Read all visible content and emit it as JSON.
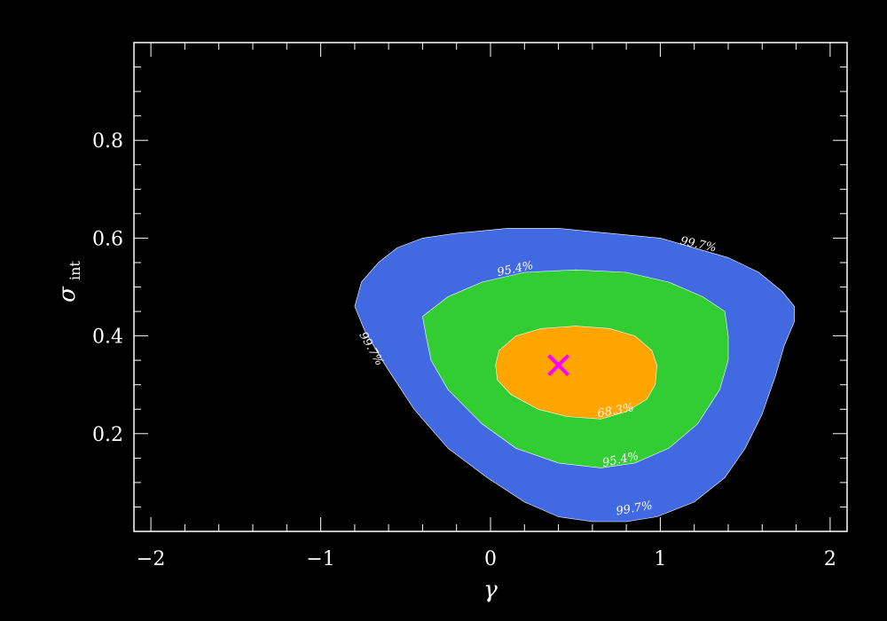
{
  "chart_data": {
    "type": "contour",
    "xlabel": "γ",
    "ylabel_main": "σ",
    "ylabel_sub": "int",
    "xlim": [
      -2.1,
      2.1
    ],
    "ylim": [
      0.0,
      1.0
    ],
    "x_ticks": [
      -2,
      -1,
      0,
      1,
      2
    ],
    "x_tick_labels": [
      "−2",
      "−1",
      "0",
      "1",
      "2"
    ],
    "y_ticks": [
      0.2,
      0.4,
      0.6,
      0.8
    ],
    "y_tick_labels": [
      "0.2",
      "0.4",
      "0.6",
      "0.8"
    ],
    "colors": {
      "background": "#000000",
      "axes": "#ffffff",
      "level_997": "#4169e1",
      "level_954": "#32cd32",
      "level_683": "#ffa500",
      "best_fit_marker": "#ff00ff"
    },
    "contours": [
      {
        "level": "99.7%",
        "polygon": [
          [
            -0.76,
            0.51
          ],
          [
            -0.66,
            0.55
          ],
          [
            -0.55,
            0.58
          ],
          [
            -0.4,
            0.6
          ],
          [
            -0.2,
            0.61
          ],
          [
            0.1,
            0.62
          ],
          [
            0.4,
            0.62
          ],
          [
            0.7,
            0.61
          ],
          [
            1.0,
            0.6
          ],
          [
            1.2,
            0.58
          ],
          [
            1.4,
            0.56
          ],
          [
            1.58,
            0.53
          ],
          [
            1.72,
            0.49
          ],
          [
            1.79,
            0.46
          ],
          [
            1.79,
            0.43
          ],
          [
            1.73,
            0.38
          ],
          [
            1.68,
            0.32
          ],
          [
            1.6,
            0.24
          ],
          [
            1.5,
            0.17
          ],
          [
            1.38,
            0.11
          ],
          [
            1.2,
            0.06
          ],
          [
            0.98,
            0.03
          ],
          [
            0.8,
            0.02
          ],
          [
            0.6,
            0.02
          ],
          [
            0.4,
            0.03
          ],
          [
            0.2,
            0.06
          ],
          [
            -0.02,
            0.11
          ],
          [
            -0.25,
            0.17
          ],
          [
            -0.45,
            0.25
          ],
          [
            -0.62,
            0.34
          ],
          [
            -0.74,
            0.41
          ],
          [
            -0.8,
            0.46
          ]
        ],
        "labels": [
          {
            "text": "99.7%",
            "x": 1.22,
            "y": 0.58,
            "angle": 12
          },
          {
            "text": "99.7%",
            "x": -0.72,
            "y": 0.37,
            "angle": 60
          },
          {
            "text": "99.7%",
            "x": 0.85,
            "y": 0.04,
            "angle": -10
          }
        ]
      },
      {
        "level": "95.4%",
        "polygon": [
          [
            -0.4,
            0.44
          ],
          [
            -0.25,
            0.48
          ],
          [
            -0.05,
            0.51
          ],
          [
            0.2,
            0.53
          ],
          [
            0.5,
            0.535
          ],
          [
            0.8,
            0.53
          ],
          [
            1.05,
            0.51
          ],
          [
            1.25,
            0.48
          ],
          [
            1.38,
            0.45
          ],
          [
            1.4,
            0.4
          ],
          [
            1.4,
            0.35
          ],
          [
            1.35,
            0.29
          ],
          [
            1.22,
            0.22
          ],
          [
            1.05,
            0.17
          ],
          [
            0.85,
            0.14
          ],
          [
            0.65,
            0.13
          ],
          [
            0.4,
            0.14
          ],
          [
            0.15,
            0.17
          ],
          [
            -0.05,
            0.22
          ],
          [
            -0.25,
            0.29
          ],
          [
            -0.35,
            0.35
          ],
          [
            -0.38,
            0.4
          ]
        ],
        "labels": [
          {
            "text": "95.4%",
            "x": 0.15,
            "y": 0.53,
            "angle": -12
          },
          {
            "text": "95.4%",
            "x": 0.77,
            "y": 0.14,
            "angle": -12
          }
        ]
      },
      {
        "level": "68.3%",
        "polygon": [
          [
            0.05,
            0.37
          ],
          [
            0.15,
            0.4
          ],
          [
            0.3,
            0.415
          ],
          [
            0.5,
            0.42
          ],
          [
            0.7,
            0.415
          ],
          [
            0.85,
            0.4
          ],
          [
            0.95,
            0.37
          ],
          [
            0.98,
            0.34
          ],
          [
            0.97,
            0.3
          ],
          [
            0.92,
            0.27
          ],
          [
            0.8,
            0.245
          ],
          [
            0.65,
            0.23
          ],
          [
            0.45,
            0.235
          ],
          [
            0.28,
            0.25
          ],
          [
            0.12,
            0.28
          ],
          [
            0.04,
            0.31
          ],
          [
            0.03,
            0.34
          ]
        ],
        "labels": [
          {
            "text": "68.3%",
            "x": 0.74,
            "y": 0.24,
            "angle": -10
          }
        ]
      }
    ],
    "best_fit": {
      "x": 0.4,
      "y": 0.34
    }
  }
}
